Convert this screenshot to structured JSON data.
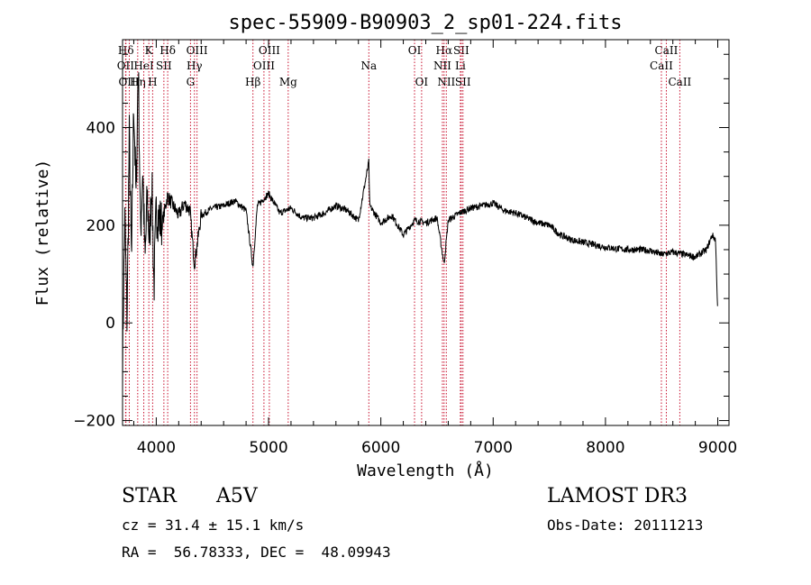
{
  "chart_data": {
    "type": "line",
    "title": "spec-55909-B90903_2_sp01-224.fits",
    "xlabel": "Wavelength (Å)",
    "ylabel": "Flux (relative)",
    "xlim": [
      3700,
      9100
    ],
    "ylim": [
      -210,
      580
    ],
    "xticks": [
      4000,
      5000,
      6000,
      7000,
      8000,
      9000
    ],
    "yticks": [
      -200,
      0,
      200,
      400
    ],
    "grid": false,
    "series": [
      {
        "name": "flux",
        "x": [
          3700,
          3720,
          3740,
          3760,
          3780,
          3800,
          3820,
          3840,
          3860,
          3880,
          3900,
          3920,
          3940,
          3960,
          3980,
          4000,
          4050,
          4100,
          4150,
          4200,
          4250,
          4300,
          4340,
          4400,
          4500,
          4600,
          4700,
          4800,
          4861,
          4900,
          5000,
          5100,
          5200,
          5300,
          5400,
          5500,
          5600,
          5700,
          5800,
          5893,
          5900,
          6000,
          6100,
          6200,
          6300,
          6400,
          6500,
          6563,
          6600,
          6700,
          6800,
          6900,
          7000,
          7100,
          7200,
          7300,
          7400,
          7500,
          7600,
          7700,
          7800,
          7900,
          8000,
          8100,
          8200,
          8300,
          8400,
          8500,
          8600,
          8700,
          8800,
          8900,
          8950,
          8980,
          9000
        ],
        "y": [
          -80,
          220,
          0,
          380,
          120,
          460,
          250,
          540,
          180,
          320,
          120,
          260,
          160,
          300,
          70,
          230,
          200,
          260,
          240,
          220,
          245,
          230,
          120,
          220,
          235,
          240,
          250,
          230,
          115,
          240,
          265,
          225,
          235,
          215,
          215,
          225,
          240,
          230,
          210,
          330,
          240,
          205,
          220,
          180,
          210,
          205,
          215,
          120,
          210,
          225,
          235,
          240,
          245,
          230,
          225,
          215,
          205,
          200,
          180,
          170,
          165,
          160,
          155,
          152,
          150,
          150,
          148,
          140,
          145,
          140,
          135,
          150,
          180,
          170,
          20
        ]
      }
    ],
    "emission_lines": [
      {
        "label": "Hδ",
        "x": 3730,
        "row": 1
      },
      {
        "label": "OII",
        "x": 3727,
        "row": 2
      },
      {
        "label": "OIII",
        "x": 3760,
        "row": 3
      },
      {
        "label": "Hη",
        "x": 3835,
        "row": 3
      },
      {
        "label": "HeI",
        "x": 3889,
        "row": 2
      },
      {
        "label": "K",
        "x": 3934,
        "row": 1
      },
      {
        "label": "H",
        "x": 3968,
        "row": 3
      },
      {
        "label": "SII",
        "x": 4068,
        "row": 2
      },
      {
        "label": "Hδ",
        "x": 4102,
        "row": 1
      },
      {
        "label": "OIII",
        "x": 4363,
        "row": 1
      },
      {
        "label": "Hγ",
        "x": 4340,
        "row": 2
      },
      {
        "label": "G",
        "x": 4305,
        "row": 3
      },
      {
        "label": "Hβ",
        "x": 4861,
        "row": 3
      },
      {
        "label": "OIII",
        "x": 4959,
        "row": 2
      },
      {
        "label": "OIII",
        "x": 5007,
        "row": 1
      },
      {
        "label": "Mg",
        "x": 5175,
        "row": 3
      },
      {
        "label": "Na",
        "x": 5893,
        "row": 2
      },
      {
        "label": "OI",
        "x": 6300,
        "row": 1
      },
      {
        "label": "OI",
        "x": 6363,
        "row": 3
      },
      {
        "label": "Hα",
        "x": 6563,
        "row": 1
      },
      {
        "label": "NII",
        "x": 6548,
        "row": 2
      },
      {
        "label": "NII",
        "x": 6583,
        "row": 3
      },
      {
        "label": "SII",
        "x": 6716,
        "row": 1
      },
      {
        "label": "Li",
        "x": 6708,
        "row": 2
      },
      {
        "label": "SII",
        "x": 6731,
        "row": 3
      },
      {
        "label": "CaII",
        "x": 8542,
        "row": 1
      },
      {
        "label": "CaII",
        "x": 8498,
        "row": 2
      },
      {
        "label": "CaII",
        "x": 8662,
        "row": 3
      }
    ]
  },
  "info": {
    "class": "STAR",
    "subclass": "A5V",
    "cz": "cz = 31.4 ± 15.1 km/s",
    "coords": "RA =  56.78333, DEC =  48.09943",
    "survey": "LAMOST DR3",
    "obs_date": "Obs-Date: 20111213"
  }
}
